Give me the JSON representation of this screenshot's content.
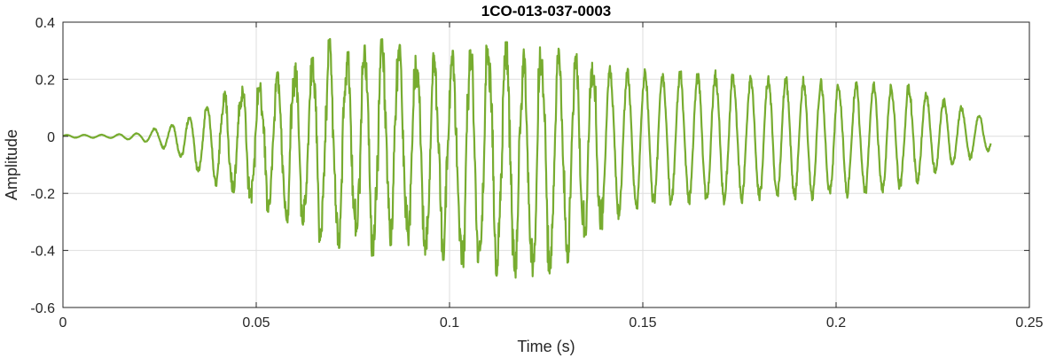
{
  "chart_data": {
    "type": "line",
    "title": "1CO-013-037-0003",
    "xlabel": "Time (s)",
    "ylabel": "Amplitude",
    "xlim": [
      0,
      0.25
    ],
    "ylim": [
      -0.6,
      0.4
    ],
    "xticks": [
      0,
      0.05,
      0.1,
      0.15,
      0.2,
      0.25
    ],
    "xtick_labels": [
      "0",
      "0.05",
      "0.1",
      "0.15",
      "0.2",
      "0.25"
    ],
    "yticks": [
      -0.6,
      -0.4,
      -0.2,
      0,
      0.2,
      0.4
    ],
    "ytick_labels": [
      "-0.6",
      "-0.4",
      "-0.2",
      "0",
      "0.2",
      "0.4"
    ],
    "grid": true,
    "line_color": "#77ac30",
    "series": [
      {
        "x_start": 0,
        "x_end": 0.24,
        "envelope_t": [
          0,
          0.012,
          0.02,
          0.024,
          0.027,
          0.03,
          0.035,
          0.04,
          0.045,
          0.05,
          0.055,
          0.06,
          0.065,
          0.07,
          0.075,
          0.08,
          0.085,
          0.09,
          0.095,
          0.1,
          0.105,
          0.11,
          0.115,
          0.12,
          0.125,
          0.13,
          0.135,
          0.14,
          0.145,
          0.15,
          0.16,
          0.17,
          0.18,
          0.19,
          0.2,
          0.21,
          0.22,
          0.225,
          0.23,
          0.235,
          0.24
        ],
        "envelope_max": [
          0.005,
          0.006,
          0.012,
          0.03,
          0.04,
          0.05,
          0.09,
          0.15,
          0.17,
          0.19,
          0.22,
          0.26,
          0.3,
          0.35,
          0.3,
          0.33,
          0.35,
          0.28,
          0.29,
          0.3,
          0.3,
          0.33,
          0.33,
          0.3,
          0.32,
          0.3,
          0.28,
          0.26,
          0.25,
          0.24,
          0.24,
          0.23,
          0.22,
          0.21,
          0.2,
          0.19,
          0.18,
          0.15,
          0.12,
          0.09,
          0.06
        ],
        "envelope_min": [
          -0.005,
          -0.006,
          -0.015,
          -0.03,
          -0.05,
          -0.07,
          -0.13,
          -0.18,
          -0.21,
          -0.24,
          -0.28,
          -0.32,
          -0.36,
          -0.4,
          -0.37,
          -0.42,
          -0.38,
          -0.4,
          -0.44,
          -0.43,
          -0.47,
          -0.48,
          -0.5,
          -0.49,
          -0.5,
          -0.45,
          -0.38,
          -0.32,
          -0.28,
          -0.26,
          -0.24,
          -0.24,
          -0.23,
          -0.23,
          -0.22,
          -0.21,
          -0.18,
          -0.14,
          -0.11,
          -0.08,
          -0.05
        ],
        "frequency_hz": 220
      }
    ]
  }
}
